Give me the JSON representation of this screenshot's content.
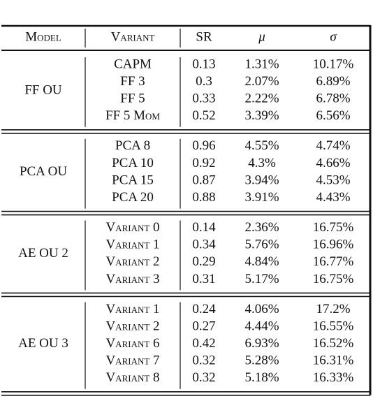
{
  "table": {
    "header": [
      "Model",
      "Variant",
      "SR",
      "μ",
      "σ"
    ],
    "groups": [
      {
        "model": "FF OU",
        "rows": [
          [
            "CAPM",
            "0.13",
            "1.31%",
            "10.17%"
          ],
          [
            "FF 3",
            "0.3",
            "2.07%",
            "6.89%"
          ],
          [
            "FF 5",
            "0.33",
            "2.22%",
            "6.78%"
          ],
          [
            "FF 5 Mom",
            "0.52",
            "3.39%",
            "6.56%"
          ]
        ]
      },
      {
        "model": "PCA OU",
        "rows": [
          [
            "PCA 8",
            "0.96",
            "4.55%",
            "4.74%"
          ],
          [
            "PCA 10",
            "0.92",
            "4.3%",
            "4.66%"
          ],
          [
            "PCA 15",
            "0.87",
            "3.94%",
            "4.53%"
          ],
          [
            "PCA 20",
            "0.88",
            "3.91%",
            "4.43%"
          ]
        ]
      },
      {
        "model": "AE OU 2",
        "rows": [
          [
            "Variant 0",
            "0.14",
            "2.36%",
            "16.75%"
          ],
          [
            "Variant 1",
            "0.34",
            "5.76%",
            "16.96%"
          ],
          [
            "Variant 2",
            "0.29",
            "4.84%",
            "16.77%"
          ],
          [
            "Variant 3",
            "0.31",
            "5.17%",
            "16.75%"
          ]
        ]
      },
      {
        "model": "AE OU 3",
        "rows": [
          [
            "Variant 1",
            "0.24",
            "4.06%",
            "17.2%"
          ],
          [
            "Variant 2",
            "0.27",
            "4.44%",
            "16.55%"
          ],
          [
            "Variant 6",
            "0.42",
            "6.93%",
            "16.52%"
          ],
          [
            "Variant 7",
            "0.32",
            "5.28%",
            "16.31%"
          ],
          [
            "Variant 8",
            "0.32",
            "5.18%",
            "16.33%"
          ]
        ]
      }
    ]
  }
}
